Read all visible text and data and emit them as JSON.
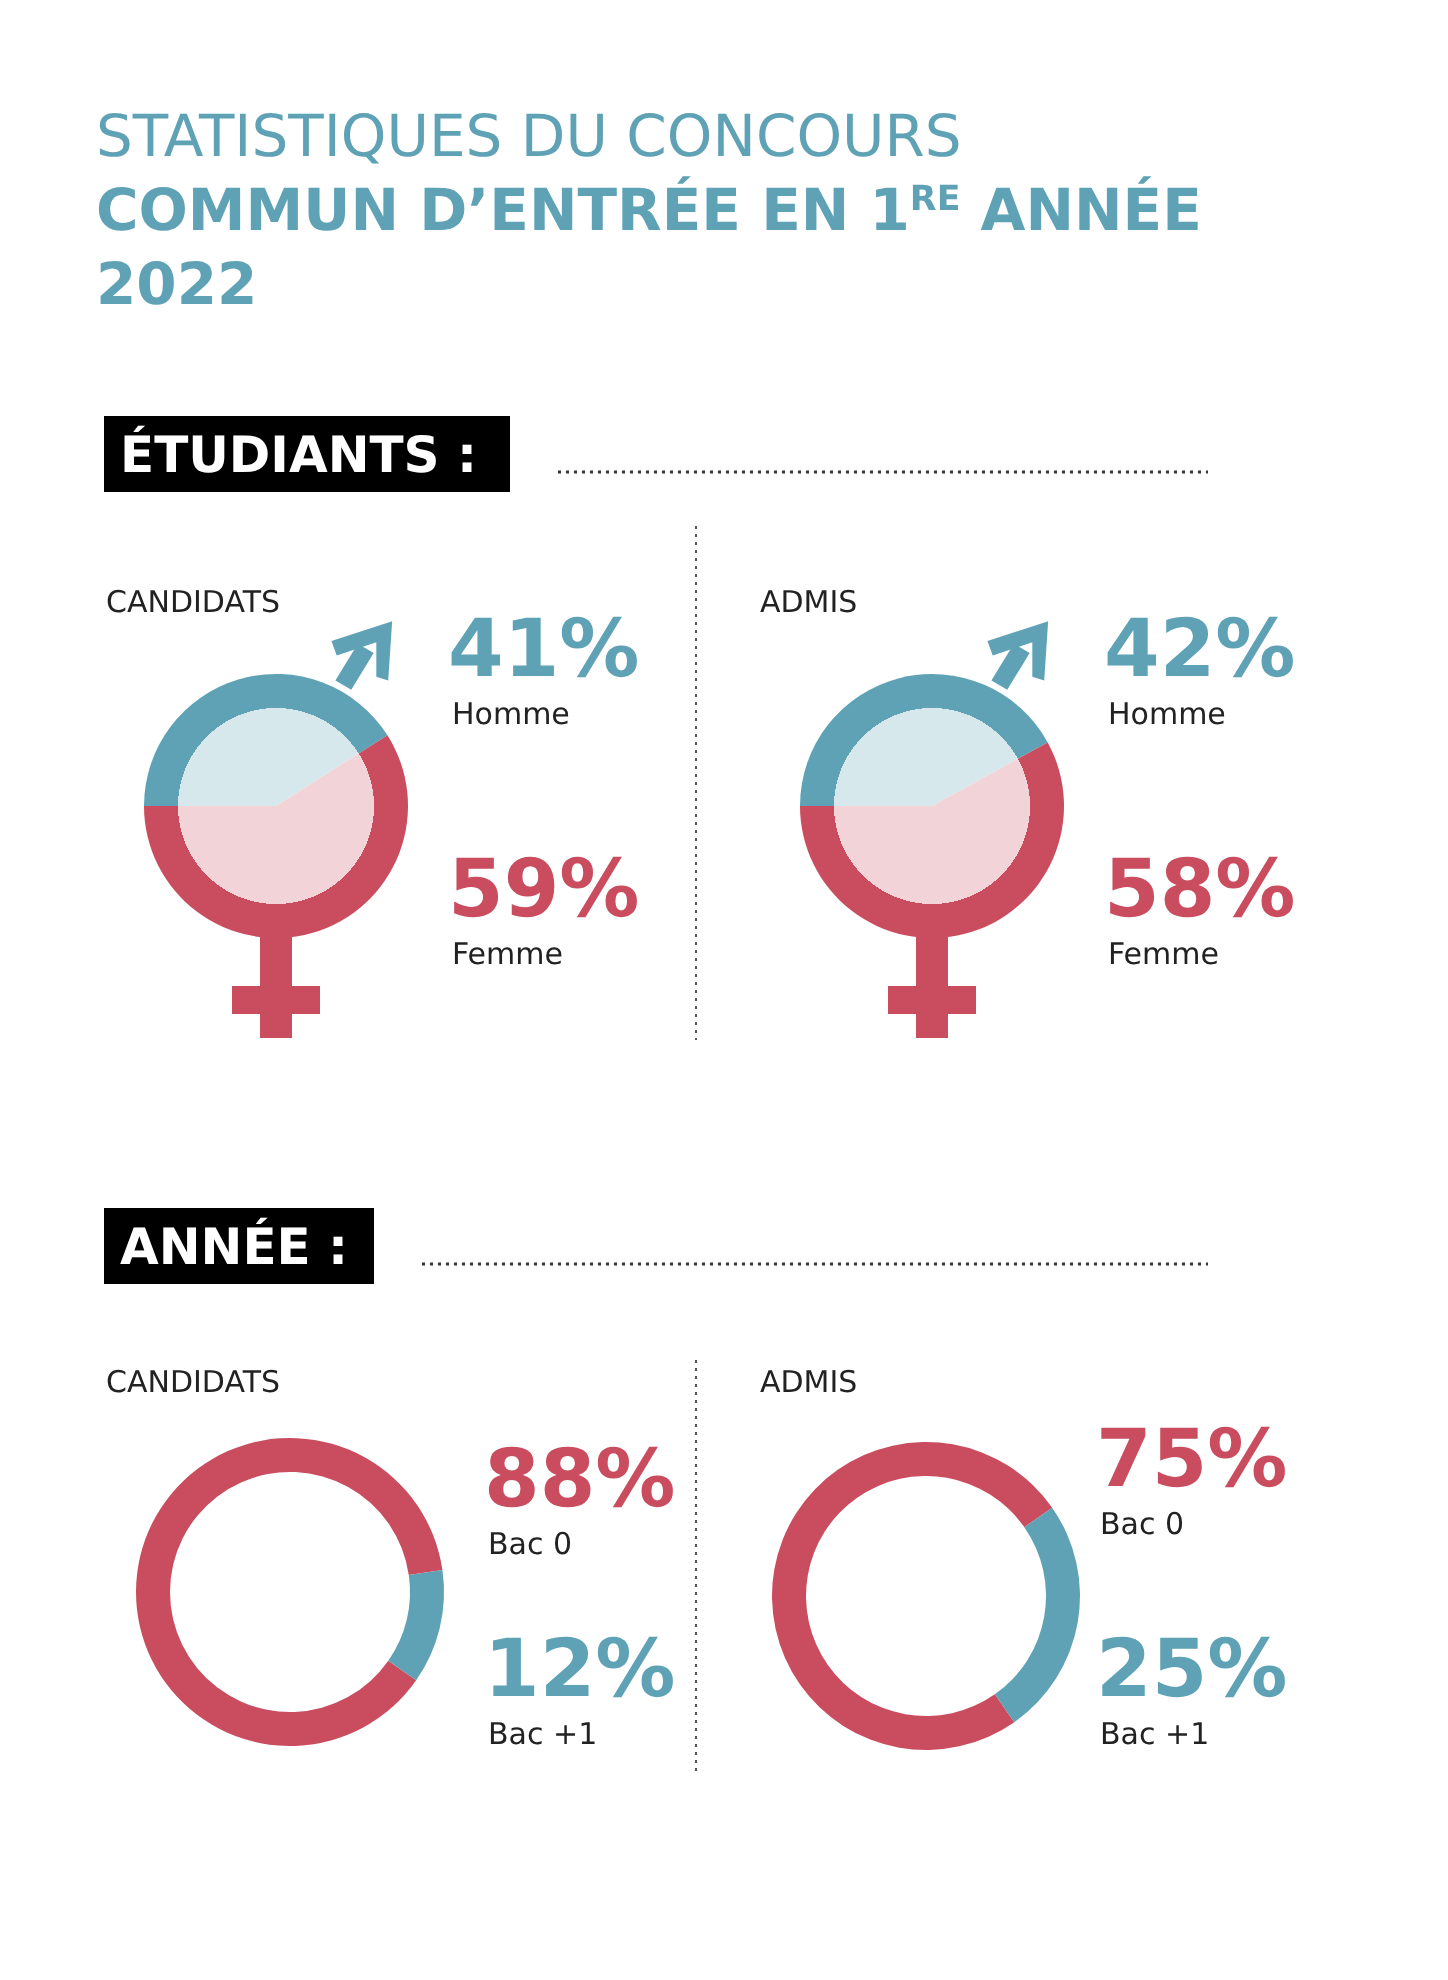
{
  "chart_data": [
    {
      "type": "other",
      "title": "STATISTIQUES DU CONCOURS COMMUN D’ENTRÉE EN 1$^{RE}$ ANNÉE 2022",
      "annotations": [
        "ÉTUDIANTS :",
        "ANNÉE :"
      ]
    },
    {
      "type": "pie",
      "title": "CANDIDATS",
      "categories": [
        "Homme",
        "Femme"
      ],
      "values": [
        41,
        59
      ],
      "colors": [
        "#5fa2b6",
        "#c94d5f"
      ],
      "value_labels": [
        "41%",
        "59%"
      ]
    },
    {
      "type": "pie",
      "title": "ADMIS",
      "categories": [
        "Homme",
        "Femme"
      ],
      "values": [
        42,
        58
      ],
      "colors": [
        "#5fa2b6",
        "#c94d5f"
      ],
      "value_labels": [
        "42%",
        "58%"
      ]
    },
    {
      "type": "donut",
      "title": "CANDIDATS",
      "categories": [
        "Bac 0",
        "Bac +1"
      ],
      "values": [
        88,
        12
      ],
      "colors": [
        "#c94d5f",
        "#5fa2b6"
      ],
      "value_labels": [
        "88%",
        "12%"
      ]
    },
    {
      "type": "donut",
      "title": "ADMIS",
      "categories": [
        "Bac 0",
        "Bac +1"
      ],
      "values": [
        75,
        25
      ],
      "colors": [
        "#c94d5f",
        "#5fa2b6"
      ],
      "value_labels": [
        "75%",
        "25%"
      ]
    }
  ]
}
